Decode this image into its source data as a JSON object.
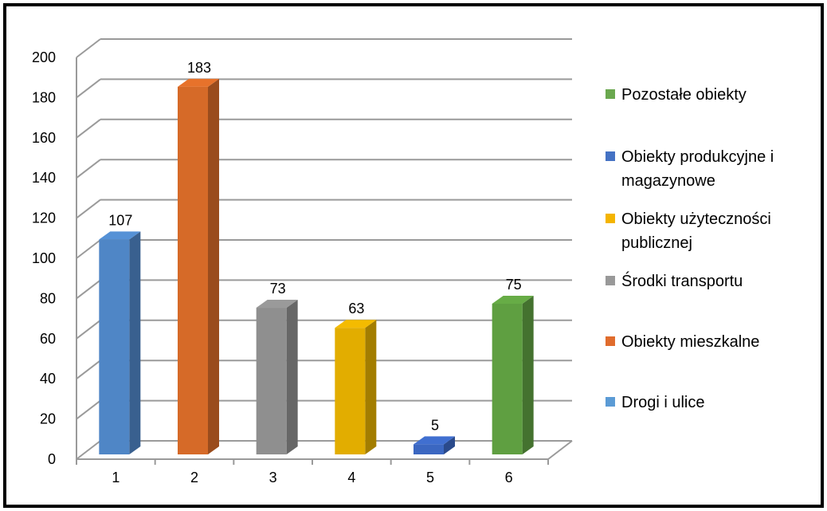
{
  "chart_data": {
    "type": "bar",
    "categories": [
      "1",
      "2",
      "3",
      "4",
      "5",
      "6"
    ],
    "values": [
      107,
      183,
      73,
      63,
      5,
      75
    ],
    "data_labels": [
      "107",
      "183",
      "73",
      "63",
      "5",
      "75"
    ],
    "yticks": [
      "0",
      "20",
      "40",
      "60",
      "80",
      "100",
      "120",
      "140",
      "160",
      "180",
      "200"
    ],
    "ylim": [
      0,
      200
    ],
    "grid": true,
    "three_d": true,
    "bar_colors": [
      "#4f86c6",
      "#d66a28",
      "#8f8f8f",
      "#e2ad00",
      "#3b67c1",
      "#5f9f41"
    ],
    "legend_position": "right",
    "legend": [
      {
        "label": "Pozostałe obiekty",
        "color": "#6aa84f"
      },
      {
        "label": "Obiekty produkcyjne i magazynowe",
        "color": "#4472c4"
      },
      {
        "label": "Obiekty użyteczności publicznej",
        "color": "#f4b400"
      },
      {
        "label": "Środki transportu",
        "color": "#999999"
      },
      {
        "label": "Obiekty mieszkalne",
        "color": "#e06c2d"
      },
      {
        "label": "Drogi i ulice",
        "color": "#5b9bd5"
      }
    ]
  }
}
